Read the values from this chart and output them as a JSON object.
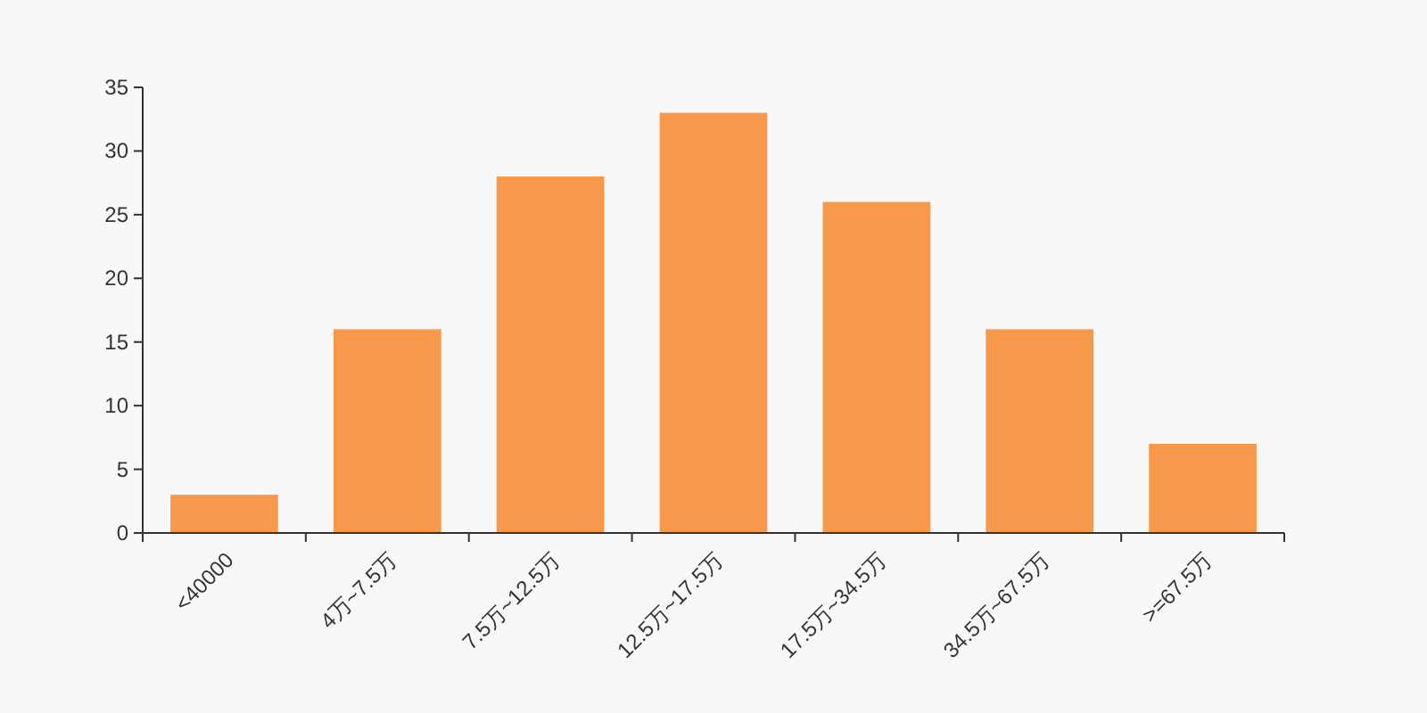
{
  "chart_data": {
    "type": "bar",
    "categories": [
      "<40000",
      "4万~7.5万",
      "7.5万~12.5万",
      "12.5万~17.5万",
      "17.5万~34.5万",
      "34.5万~67.5万",
      ">=67.5万"
    ],
    "values": [
      3,
      16,
      28,
      33,
      26,
      16,
      7
    ],
    "color": "#f7984a",
    "ylim": [
      0,
      35
    ],
    "yticks": [
      0,
      5,
      10,
      15,
      20,
      25,
      30,
      35
    ],
    "grid": false
  }
}
